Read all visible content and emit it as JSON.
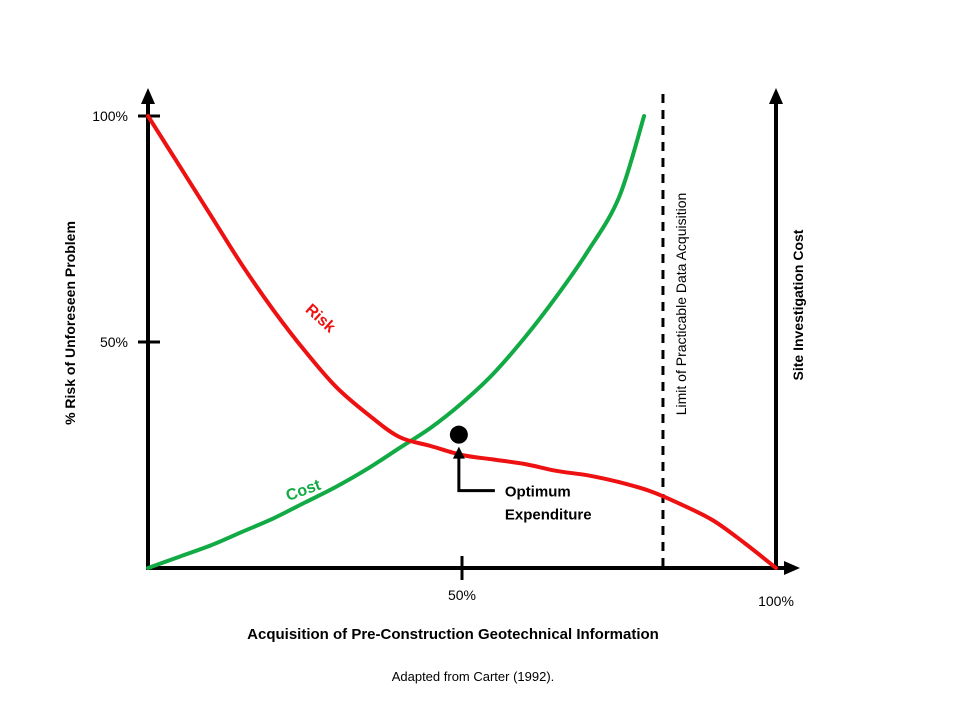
{
  "chart_data": {
    "type": "line",
    "xlabel": "Acquisition of Pre-Construction Geotechnical Information",
    "ylabel": "% Risk of Unforeseen Problem",
    "ylabel_right": "Site Investigation Cost",
    "x_ticks": [
      "50%",
      "100%"
    ],
    "y_ticks": [
      "50%",
      "100%"
    ],
    "xlim": [
      0,
      100
    ],
    "ylim": [
      0,
      100
    ],
    "grid": false,
    "series": [
      {
        "name": "Risk",
        "color": "#ee1111",
        "x": [
          0,
          5,
          10,
          15,
          20,
          25,
          30,
          35,
          40,
          45,
          50,
          55,
          60,
          65,
          70,
          75,
          80,
          85,
          90,
          95,
          100
        ],
        "y": [
          100,
          89,
          78,
          67,
          57,
          48,
          40,
          34,
          29,
          27,
          25,
          24,
          23,
          21.5,
          20.5,
          19,
          17,
          14,
          10.5,
          5.5,
          0
        ]
      },
      {
        "name": "Cost",
        "color": "#11aa44",
        "x": [
          0,
          5,
          10,
          15,
          20,
          25,
          30,
          35,
          40,
          45,
          50,
          55,
          60,
          65,
          70,
          75,
          79
        ],
        "y": [
          0,
          2.5,
          5,
          8,
          11,
          14.5,
          18,
          22,
          26.5,
          31,
          36.5,
          43,
          51,
          60,
          70,
          82,
          100
        ]
      }
    ],
    "reference_line": {
      "label": "Limit of Practicable Data Acquisition",
      "x": 82
    },
    "optimum_point": {
      "x": 49.5,
      "y": 29.5,
      "label_line1": "Optimum",
      "label_line2": "Expenditure"
    },
    "source": "Adapted from Carter (1992)."
  }
}
